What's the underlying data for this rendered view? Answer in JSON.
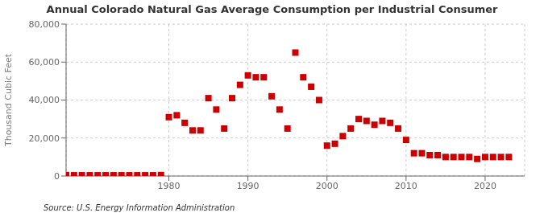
{
  "chart_data": {
    "type": "scatter",
    "title": "Annual Colorado Natural Gas Average Consumption per Industrial Consumer",
    "ylabel": "Thousand Cubic Feet",
    "annotations": [
      "Source: U.S. Energy Information Administration"
    ],
    "color": "#cc0000",
    "marker": "square",
    "grid": true,
    "xlim": [
      1967,
      2025
    ],
    "xticks": [
      1980,
      1990,
      2000,
      2010,
      2020
    ],
    "ylim": [
      0,
      80000
    ],
    "yticks": [
      0,
      {
        "value": 20000,
        "label": "20,000"
      },
      {
        "value": 40000,
        "label": "40,000"
      },
      {
        "value": 60000,
        "label": "60,000"
      },
      {
        "value": 80000,
        "label": "80,000"
      }
    ],
    "x": [
      1967,
      1968,
      1969,
      1970,
      1971,
      1972,
      1973,
      1974,
      1975,
      1976,
      1977,
      1978,
      1979,
      1980,
      1981,
      1982,
      1983,
      1984,
      1985,
      1986,
      1987,
      1988,
      1989,
      1990,
      1991,
      1992,
      1993,
      1994,
      1995,
      1996,
      1997,
      1998,
      1999,
      2000,
      2001,
      2002,
      2003,
      2004,
      2005,
      2006,
      2007,
      2008,
      2009,
      2010,
      2011,
      2012,
      2013,
      2014,
      2015,
      2016,
      2017,
      2018,
      2019,
      2020,
      2021,
      2022,
      2023
    ],
    "values": [
      500,
      400,
      400,
      400,
      400,
      400,
      400,
      400,
      400,
      400,
      400,
      400,
      500,
      31000,
      32000,
      28000,
      24000,
      24000,
      41000,
      35000,
      25000,
      41000,
      48000,
      53000,
      52000,
      52000,
      42000,
      35000,
      25000,
      65000,
      52000,
      47000,
      40000,
      16000,
      17000,
      21000,
      25000,
      30000,
      29000,
      27000,
      29000,
      28000,
      25000,
      19000,
      12000,
      12000,
      11000,
      11000,
      10000,
      10000,
      10000,
      10000,
      9000,
      10000,
      10000,
      10000,
      10000
    ]
  }
}
